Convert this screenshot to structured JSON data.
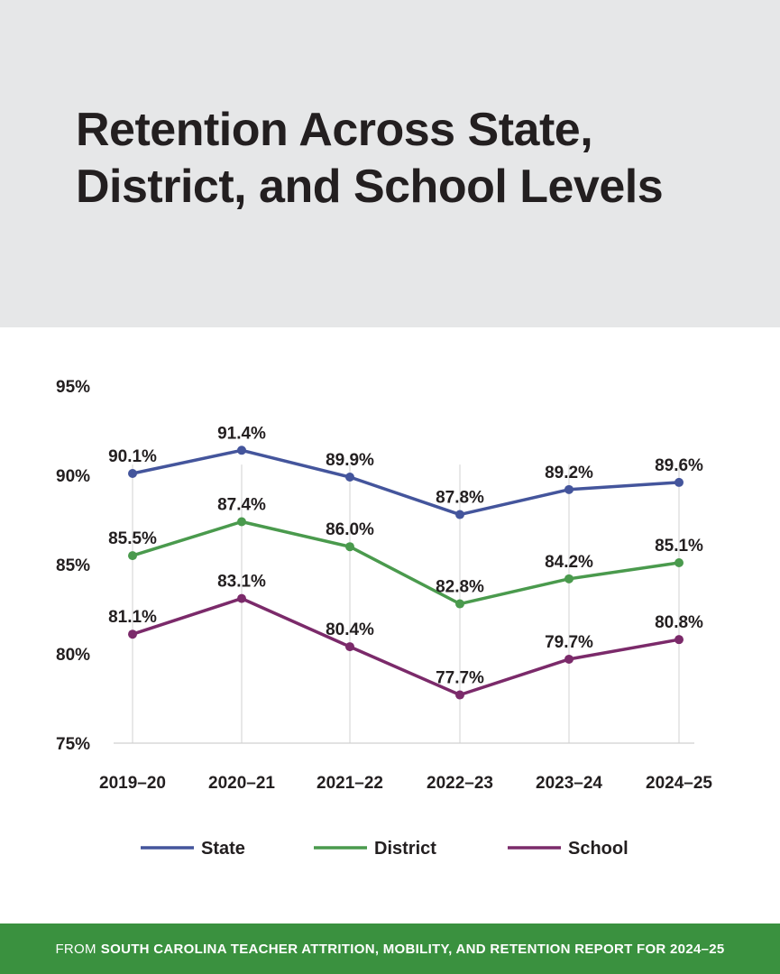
{
  "title": "Retention Across State, District, and School Levels",
  "footer": {
    "prefix": "FROM",
    "source": "SOUTH CAROLINA TEACHER ATTRITION, MOBILITY, AND RETENTION REPORT FOR 2024–25"
  },
  "colors": {
    "header_bg": "#e6e7e8",
    "footer_bg": "#3a913f",
    "state": "#44559c",
    "district": "#4a9a4d",
    "school": "#7b2a6a"
  },
  "chart_data": {
    "type": "line",
    "title": "Retention Across State, District, and School Levels",
    "xlabel": "",
    "ylabel": "",
    "categories": [
      "2019–20",
      "2020–21",
      "2021–22",
      "2022–23",
      "2023–24",
      "2024–25"
    ],
    "ylim": [
      75,
      95
    ],
    "yticks": [
      75,
      80,
      85,
      90,
      95
    ],
    "ytick_labels": [
      "75%",
      "80%",
      "85%",
      "90%",
      "95%"
    ],
    "grid": "vertical",
    "legend": "bottom",
    "series": [
      {
        "name": "State",
        "color": "#44559c",
        "values": [
          90.1,
          91.4,
          89.9,
          87.8,
          89.2,
          89.6
        ],
        "labels": [
          "90.1%",
          "91.4%",
          "89.9%",
          "87.8%",
          "89.2%",
          "89.6%"
        ]
      },
      {
        "name": "District",
        "color": "#4a9a4d",
        "values": [
          85.5,
          87.4,
          86.0,
          82.8,
          84.2,
          85.1
        ],
        "labels": [
          "85.5%",
          "87.4%",
          "86.0%",
          "82.8%",
          "84.2%",
          "85.1%"
        ]
      },
      {
        "name": "School",
        "color": "#7b2a6a",
        "values": [
          81.1,
          83.1,
          80.4,
          77.7,
          79.7,
          80.8
        ],
        "labels": [
          "81.1%",
          "83.1%",
          "80.4%",
          "77.7%",
          "79.7%",
          "80.8%"
        ]
      }
    ]
  }
}
